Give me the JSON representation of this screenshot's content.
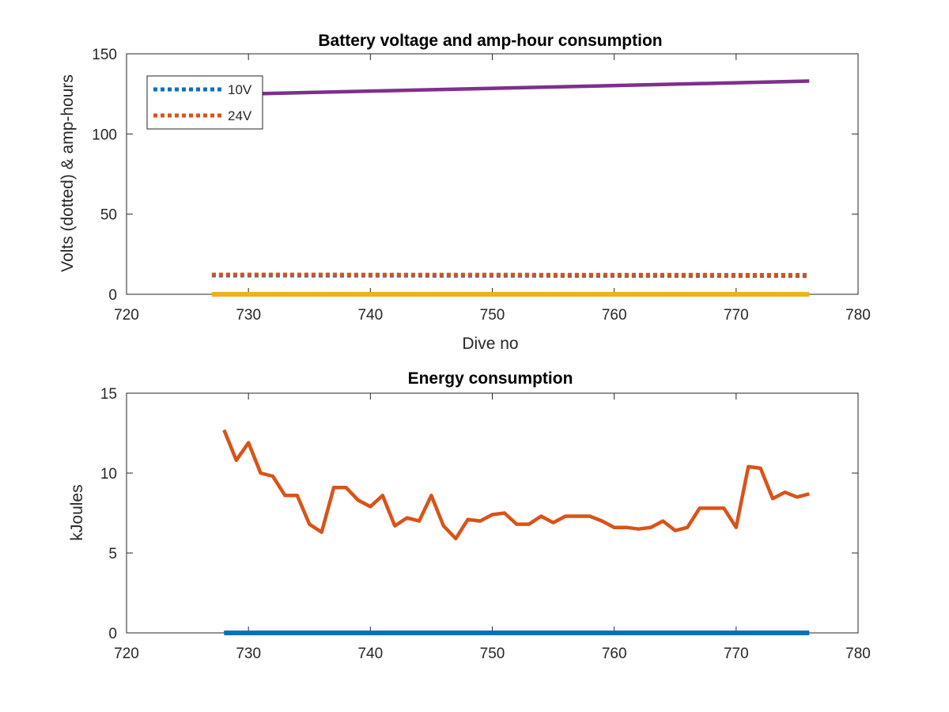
{
  "chart_data": [
    {
      "type": "line",
      "title": "Battery voltage and amp-hour consumption",
      "xlabel": "Dive no",
      "ylabel": "Volts (dotted) & amp-hours",
      "xlim": [
        720,
        780
      ],
      "ylim": [
        0,
        150
      ],
      "xticks": [
        720,
        730,
        740,
        750,
        760,
        770,
        780
      ],
      "yticks": [
        0,
        50,
        100,
        150
      ],
      "grid": false,
      "legend_position": "top-left",
      "series": [
        {
          "name": "10V",
          "color": "#0072BD",
          "style": "dotted",
          "x": [
            727,
            776
          ],
          "y": [
            11.8,
            11.5
          ]
        },
        {
          "name": "24V",
          "color": "#D95319",
          "style": "dotted",
          "x": [
            727,
            776
          ],
          "y": [
            12.3,
            12.1
          ]
        },
        {
          "color": "#7E2F8E",
          "style": "solid",
          "x": [
            730,
            776
          ],
          "y": [
            125,
            133
          ]
        },
        {
          "color": "#EDB120",
          "style": "solid",
          "x": [
            727,
            776
          ],
          "y": [
            0,
            0
          ]
        }
      ]
    },
    {
      "type": "line",
      "title": "Energy consumption",
      "xlabel": "",
      "ylabel": "kJoules",
      "xlim": [
        720,
        780
      ],
      "ylim": [
        0,
        15
      ],
      "xticks": [
        720,
        730,
        740,
        750,
        760,
        770,
        780
      ],
      "yticks": [
        0,
        5,
        10,
        15
      ],
      "grid": false,
      "series": [
        {
          "color": "#0072BD",
          "style": "solid",
          "x": [
            728,
            776
          ],
          "y": [
            0,
            0
          ]
        },
        {
          "color": "#D95319",
          "style": "solid",
          "x": [
            728,
            729,
            730,
            731,
            732,
            733,
            734,
            735,
            736,
            737,
            738,
            739,
            740,
            741,
            742,
            743,
            744,
            745,
            746,
            747,
            748,
            749,
            750,
            751,
            752,
            753,
            754,
            755,
            756,
            757,
            758,
            759,
            760,
            761,
            762,
            763,
            764,
            765,
            766,
            767,
            768,
            769,
            770,
            771,
            772,
            773,
            774,
            775,
            776
          ],
          "y": [
            12.7,
            10.8,
            11.9,
            10.0,
            9.8,
            8.6,
            8.6,
            6.8,
            6.3,
            9.1,
            9.1,
            8.3,
            7.9,
            8.6,
            6.7,
            7.2,
            7.0,
            8.6,
            6.7,
            5.9,
            7.1,
            7.0,
            7.4,
            7.5,
            6.8,
            6.8,
            7.3,
            6.9,
            7.3,
            7.3,
            7.3,
            7.0,
            6.6,
            6.6,
            6.5,
            6.6,
            7.0,
            6.4,
            6.6,
            7.8,
            7.8,
            7.8,
            6.6,
            10.4,
            10.3,
            8.4,
            8.8,
            8.5,
            8.7
          ]
        }
      ]
    }
  ]
}
